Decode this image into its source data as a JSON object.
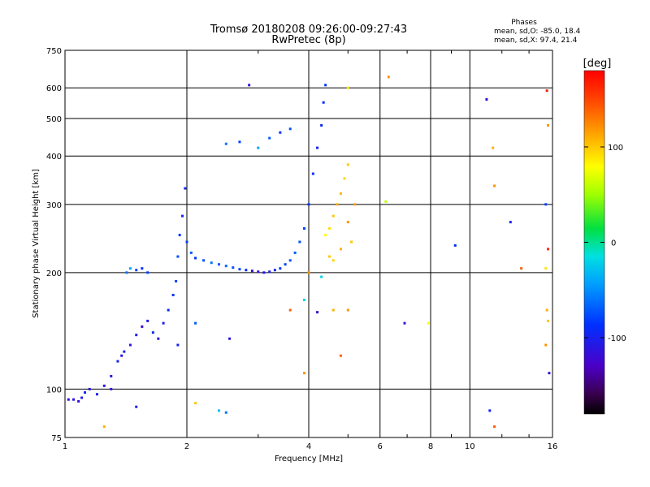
{
  "header": {
    "title_line1": "Tromsø 20180208 09:26:00-09:27:43",
    "title_line2": "RwPretec (8p)"
  },
  "stats": {
    "heading": "Phases",
    "line1": "mean, sd,O: -85.0, 18.4",
    "line2": "mean, sd,X:  97.4, 21.4"
  },
  "colorbar": {
    "label": "[deg]",
    "ticks": [
      {
        "value": 100,
        "label": "100"
      },
      {
        "value": 0,
        "label": "0"
      },
      {
        "value": -100,
        "label": "-100"
      }
    ],
    "range": [
      -180,
      180
    ]
  },
  "chart_data": {
    "type": "scatter",
    "xlabel": "Frequency [MHz]",
    "ylabel": "Stationary phase Virtual Height [km]",
    "xscale": "log",
    "yscale": "log",
    "xlim": [
      1,
      16
    ],
    "ylim": [
      75,
      750
    ],
    "xticks": [
      {
        "value": 1,
        "label": "1"
      },
      {
        "value": 2,
        "label": "2"
      },
      {
        "value": 4,
        "label": "4"
      },
      {
        "value": 6,
        "label": "6"
      },
      {
        "value": 8,
        "label": "8"
      },
      {
        "value": 10,
        "label": "10"
      },
      {
        "value": 16,
        "label": "16"
      }
    ],
    "yticks": [
      {
        "value": 75,
        "label": "75"
      },
      {
        "value": 100,
        "label": "100"
      },
      {
        "value": 200,
        "label": "200"
      },
      {
        "value": 300,
        "label": "300"
      },
      {
        "value": 400,
        "label": "400"
      },
      {
        "value": 500,
        "label": "500"
      },
      {
        "value": 600,
        "label": "600"
      },
      {
        "value": 750,
        "label": "750"
      }
    ],
    "grid": true,
    "colorbar_variable": "phase [deg]",
    "points": [
      [
        1.02,
        94,
        -115
      ],
      [
        1.05,
        94,
        -110
      ],
      [
        1.08,
        93,
        -120
      ],
      [
        1.1,
        95,
        -105
      ],
      [
        1.12,
        98,
        -95
      ],
      [
        1.15,
        100,
        -110
      ],
      [
        1.2,
        97,
        -100
      ],
      [
        1.25,
        102,
        -115
      ],
      [
        1.3,
        108,
        -105
      ],
      [
        1.35,
        118,
        -100
      ],
      [
        1.38,
        122,
        -110
      ],
      [
        1.4,
        125,
        -95
      ],
      [
        1.42,
        200,
        -60
      ],
      [
        1.45,
        205,
        -40
      ],
      [
        1.5,
        203,
        -80
      ],
      [
        1.55,
        205,
        -90
      ],
      [
        1.45,
        130,
        -110
      ],
      [
        1.5,
        138,
        -100
      ],
      [
        1.55,
        145,
        -120
      ],
      [
        1.6,
        150,
        -105
      ],
      [
        1.65,
        140,
        -95
      ],
      [
        1.7,
        135,
        -110
      ],
      [
        1.75,
        148,
        -100
      ],
      [
        1.8,
        160,
        -90
      ],
      [
        1.85,
        175,
        -85
      ],
      [
        1.88,
        190,
        -80
      ],
      [
        1.9,
        220,
        -75
      ],
      [
        1.92,
        250,
        -85
      ],
      [
        1.95,
        280,
        -90
      ],
      [
        1.98,
        330,
        -95
      ],
      [
        2.0,
        240,
        -80
      ],
      [
        2.05,
        225,
        -70
      ],
      [
        2.1,
        218,
        -85
      ],
      [
        2.2,
        215,
        -75
      ],
      [
        2.3,
        212,
        -60
      ],
      [
        2.4,
        210,
        -70
      ],
      [
        2.5,
        208,
        -65
      ],
      [
        2.6,
        206,
        -75
      ],
      [
        2.7,
        204,
        -80
      ],
      [
        2.8,
        203,
        -90
      ],
      [
        2.9,
        202,
        -120
      ],
      [
        3.0,
        201,
        -115
      ],
      [
        3.1,
        200,
        -110
      ],
      [
        3.2,
        201,
        -105
      ],
      [
        3.3,
        203,
        -95
      ],
      [
        3.4,
        205,
        -85
      ],
      [
        3.5,
        210,
        -80
      ],
      [
        3.6,
        215,
        -75
      ],
      [
        3.7,
        225,
        -70
      ],
      [
        3.8,
        240,
        -75
      ],
      [
        3.9,
        260,
        -80
      ],
      [
        4.0,
        300,
        -85
      ],
      [
        4.1,
        360,
        -90
      ],
      [
        4.2,
        420,
        -100
      ],
      [
        4.3,
        480,
        -95
      ],
      [
        4.35,
        550,
        -90
      ],
      [
        4.4,
        610,
        -85
      ],
      [
        2.5,
        430,
        -60
      ],
      [
        2.7,
        435,
        -80
      ],
      [
        3.0,
        420,
        -40
      ],
      [
        3.2,
        445,
        -70
      ],
      [
        3.4,
        460,
        -85
      ],
      [
        3.6,
        470,
        -75
      ],
      [
        2.85,
        610,
        -110
      ],
      [
        4.4,
        250,
        80
      ],
      [
        4.5,
        260,
        90
      ],
      [
        4.6,
        280,
        100
      ],
      [
        4.7,
        300,
        110
      ],
      [
        4.8,
        320,
        105
      ],
      [
        4.9,
        350,
        95
      ],
      [
        5.0,
        380,
        100
      ],
      [
        4.5,
        220,
        100
      ],
      [
        4.6,
        215,
        95
      ],
      [
        4.8,
        230,
        110
      ],
      [
        5.0,
        270,
        120
      ],
      [
        5.2,
        300,
        115
      ],
      [
        5.1,
        240,
        100
      ],
      [
        6.3,
        640,
        120
      ],
      [
        6.2,
        305,
        60
      ],
      [
        5.0,
        600,
        90
      ],
      [
        9.2,
        235,
        -90
      ],
      [
        11.0,
        560,
        -110
      ],
      [
        11.4,
        420,
        110
      ],
      [
        12.6,
        270,
        -100
      ],
      [
        13.4,
        205,
        140
      ],
      [
        15.5,
        590,
        170
      ],
      [
        15.6,
        480,
        120
      ],
      [
        15.4,
        300,
        -80
      ],
      [
        15.6,
        230,
        160
      ],
      [
        15.5,
        160,
        110
      ],
      [
        15.6,
        150,
        100
      ],
      [
        15.4,
        130,
        120
      ],
      [
        15.7,
        110,
        -120
      ],
      [
        15.4,
        205,
        90
      ],
      [
        11.5,
        80,
        140
      ],
      [
        11.2,
        88,
        -100
      ],
      [
        11.5,
        335,
        120
      ],
      [
        6.9,
        148,
        -110
      ],
      [
        7.9,
        148,
        80
      ],
      [
        3.6,
        160,
        140
      ],
      [
        3.9,
        170,
        -20
      ],
      [
        4.2,
        158,
        -120
      ],
      [
        4.6,
        160,
        110
      ],
      [
        5.0,
        160,
        120
      ],
      [
        4.8,
        122,
        140
      ],
      [
        3.9,
        110,
        120
      ],
      [
        2.4,
        88,
        -30
      ],
      [
        2.5,
        87,
        -60
      ],
      [
        1.5,
        90,
        -100
      ],
      [
        1.25,
        80,
        110
      ],
      [
        2.1,
        92,
        100
      ],
      [
        1.3,
        100,
        -110
      ],
      [
        2.55,
        135,
        -110
      ],
      [
        2.1,
        148,
        -70
      ],
      [
        1.6,
        200,
        -80
      ],
      [
        1.9,
        130,
        -100
      ],
      [
        4.0,
        200,
        120
      ],
      [
        4.3,
        195,
        -20
      ]
    ]
  }
}
